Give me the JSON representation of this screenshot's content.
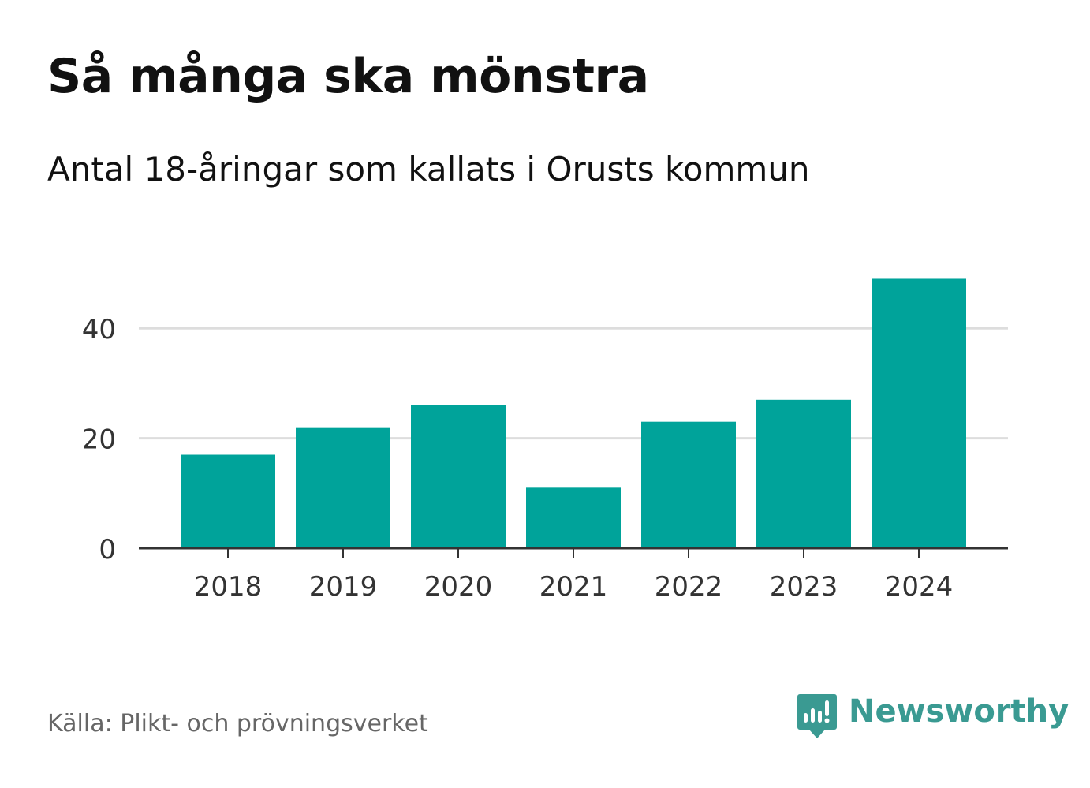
{
  "header": {
    "title": "Så många ska mönstra",
    "subtitle": "Antal 18-åringar som kallats i Orusts kommun"
  },
  "footer": {
    "source": "Källa: Plikt- och prövningsverket",
    "logo_text": "Newsworthy"
  },
  "colors": {
    "bar": "#00a39a",
    "grid": "#dddddd",
    "axis": "#333333",
    "logo": "#3a9a92"
  },
  "chart_data": {
    "type": "bar",
    "title": "Så många ska mönstra",
    "subtitle": "Antal 18-åringar som kallats i Orusts kommun",
    "xlabel": "",
    "ylabel": "",
    "categories": [
      "2018",
      "2019",
      "2020",
      "2021",
      "2022",
      "2023",
      "2024"
    ],
    "values": [
      17,
      22,
      26,
      11,
      23,
      27,
      49
    ],
    "ylim": [
      0,
      50
    ],
    "yticks": [
      0,
      20,
      40
    ],
    "grid": true,
    "legend": "none"
  }
}
